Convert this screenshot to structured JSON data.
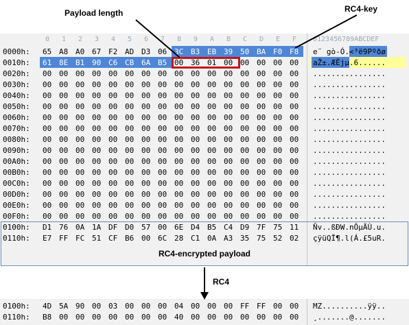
{
  "callouts": {
    "payload_length": "Payload length",
    "rc4_key": "RC4-key",
    "rc4_encrypted_payload": "RC4-encrypted payload",
    "rc4": "RC4"
  },
  "header": {
    "cols": [
      "0",
      "1",
      "2",
      "3",
      "4",
      "5",
      "6",
      "7",
      "8",
      "9",
      "A",
      "B",
      "C",
      "D",
      "E",
      "F"
    ],
    "ascii_header": "0123456789ABCDEF"
  },
  "rows": [
    {
      "addr": "0000h:",
      "bytes": [
        "65",
        "A8",
        "A0",
        "67",
        "F2",
        "AD",
        "D3",
        "06",
        "3C",
        "B3",
        "EB",
        "39",
        "50",
        "BA",
        "F0",
        "F8"
      ],
      "ascii": "e¨ gò-Ó.<³ë9Pºðø"
    },
    {
      "addr": "0010h:",
      "bytes": [
        "61",
        "8E",
        "B1",
        "90",
        "C6",
        "CB",
        "6A",
        "B5",
        "00",
        "36",
        "01",
        "00",
        "00",
        "00",
        "00",
        "00"
      ],
      "ascii": "aŽ±.ÆËjµ.6......"
    },
    {
      "addr": "0020h:",
      "bytes": [
        "00",
        "00",
        "00",
        "00",
        "00",
        "00",
        "00",
        "00",
        "00",
        "00",
        "00",
        "00",
        "00",
        "00",
        "00",
        "00"
      ],
      "ascii": "................"
    },
    {
      "addr": "0030h:",
      "bytes": [
        "00",
        "00",
        "00",
        "00",
        "00",
        "00",
        "00",
        "00",
        "00",
        "00",
        "00",
        "00",
        "00",
        "00",
        "00",
        "00"
      ],
      "ascii": "................"
    },
    {
      "addr": "0040h:",
      "bytes": [
        "00",
        "00",
        "00",
        "00",
        "00",
        "00",
        "00",
        "00",
        "00",
        "00",
        "00",
        "00",
        "00",
        "00",
        "00",
        "00"
      ],
      "ascii": "................"
    },
    {
      "addr": "0050h:",
      "bytes": [
        "00",
        "00",
        "00",
        "00",
        "00",
        "00",
        "00",
        "00",
        "00",
        "00",
        "00",
        "00",
        "00",
        "00",
        "00",
        "00"
      ],
      "ascii": "................"
    },
    {
      "addr": "0060h:",
      "bytes": [
        "00",
        "00",
        "00",
        "00",
        "00",
        "00",
        "00",
        "00",
        "00",
        "00",
        "00",
        "00",
        "00",
        "00",
        "00",
        "00"
      ],
      "ascii": "................"
    },
    {
      "addr": "0070h:",
      "bytes": [
        "00",
        "00",
        "00",
        "00",
        "00",
        "00",
        "00",
        "00",
        "00",
        "00",
        "00",
        "00",
        "00",
        "00",
        "00",
        "00"
      ],
      "ascii": "................"
    },
    {
      "addr": "0080h:",
      "bytes": [
        "00",
        "00",
        "00",
        "00",
        "00",
        "00",
        "00",
        "00",
        "00",
        "00",
        "00",
        "00",
        "00",
        "00",
        "00",
        "00"
      ],
      "ascii": "................"
    },
    {
      "addr": "0090h:",
      "bytes": [
        "00",
        "00",
        "00",
        "00",
        "00",
        "00",
        "00",
        "00",
        "00",
        "00",
        "00",
        "00",
        "00",
        "00",
        "00",
        "00"
      ],
      "ascii": "................"
    },
    {
      "addr": "00A0h:",
      "bytes": [
        "00",
        "00",
        "00",
        "00",
        "00",
        "00",
        "00",
        "00",
        "00",
        "00",
        "00",
        "00",
        "00",
        "00",
        "00",
        "00"
      ],
      "ascii": "................"
    },
    {
      "addr": "00B0h:",
      "bytes": [
        "00",
        "00",
        "00",
        "00",
        "00",
        "00",
        "00",
        "00",
        "00",
        "00",
        "00",
        "00",
        "00",
        "00",
        "00",
        "00"
      ],
      "ascii": "................"
    },
    {
      "addr": "00C0h:",
      "bytes": [
        "00",
        "00",
        "00",
        "00",
        "00",
        "00",
        "00",
        "00",
        "00",
        "00",
        "00",
        "00",
        "00",
        "00",
        "00",
        "00"
      ],
      "ascii": "................"
    },
    {
      "addr": "00D0h:",
      "bytes": [
        "00",
        "00",
        "00",
        "00",
        "00",
        "00",
        "00",
        "00",
        "00",
        "00",
        "00",
        "00",
        "00",
        "00",
        "00",
        "00"
      ],
      "ascii": "................"
    },
    {
      "addr": "00E0h:",
      "bytes": [
        "00",
        "00",
        "00",
        "00",
        "00",
        "00",
        "00",
        "00",
        "00",
        "00",
        "00",
        "00",
        "00",
        "00",
        "00",
        "00"
      ],
      "ascii": "................"
    },
    {
      "addr": "00F0h:",
      "bytes": [
        "00",
        "00",
        "00",
        "00",
        "00",
        "00",
        "00",
        "00",
        "00",
        "00",
        "00",
        "00",
        "00",
        "00",
        "00",
        "00"
      ],
      "ascii": "................"
    },
    {
      "addr": "0100h:",
      "bytes": [
        "D1",
        "76",
        "0A",
        "1A",
        "DF",
        "D0",
        "57",
        "00",
        "6E",
        "D4",
        "B5",
        "C4",
        "D9",
        "7F",
        "75",
        "11"
      ],
      "ascii": "Ñv..ßÐW.nÔµÄÙ.u."
    },
    {
      "addr": "0110h:",
      "bytes": [
        "E7",
        "FF",
        "FC",
        "51",
        "CF",
        "B6",
        "00",
        "6C",
        "28",
        "C1",
        "0A",
        "A3",
        "35",
        "75",
        "52",
        "02"
      ],
      "ascii": "çÿüQÏ¶.l(Á.£5uR."
    }
  ],
  "decrypted_rows": [
    {
      "addr": "0100h:",
      "bytes": [
        "4D",
        "5A",
        "90",
        "00",
        "03",
        "00",
        "00",
        "00",
        "04",
        "00",
        "00",
        "00",
        "FF",
        "FF",
        "00",
        "00"
      ],
      "ascii": "MZ..........ÿÿ.."
    },
    {
      "addr": "0110h:",
      "bytes": [
        "B8",
        "00",
        "00",
        "00",
        "00",
        "00",
        "00",
        "00",
        "40",
        "00",
        "00",
        "00",
        "00",
        "00",
        "00",
        "00"
      ],
      "ascii": "¸.......@......."
    }
  ],
  "colors": {
    "key_highlight": "#4f86d6",
    "ascii_key_highlight": "#4f86d6",
    "ascii_row_highlight": "#ffff99",
    "red_box": "#c0161c",
    "panel_bg": "#f1f1f1"
  }
}
